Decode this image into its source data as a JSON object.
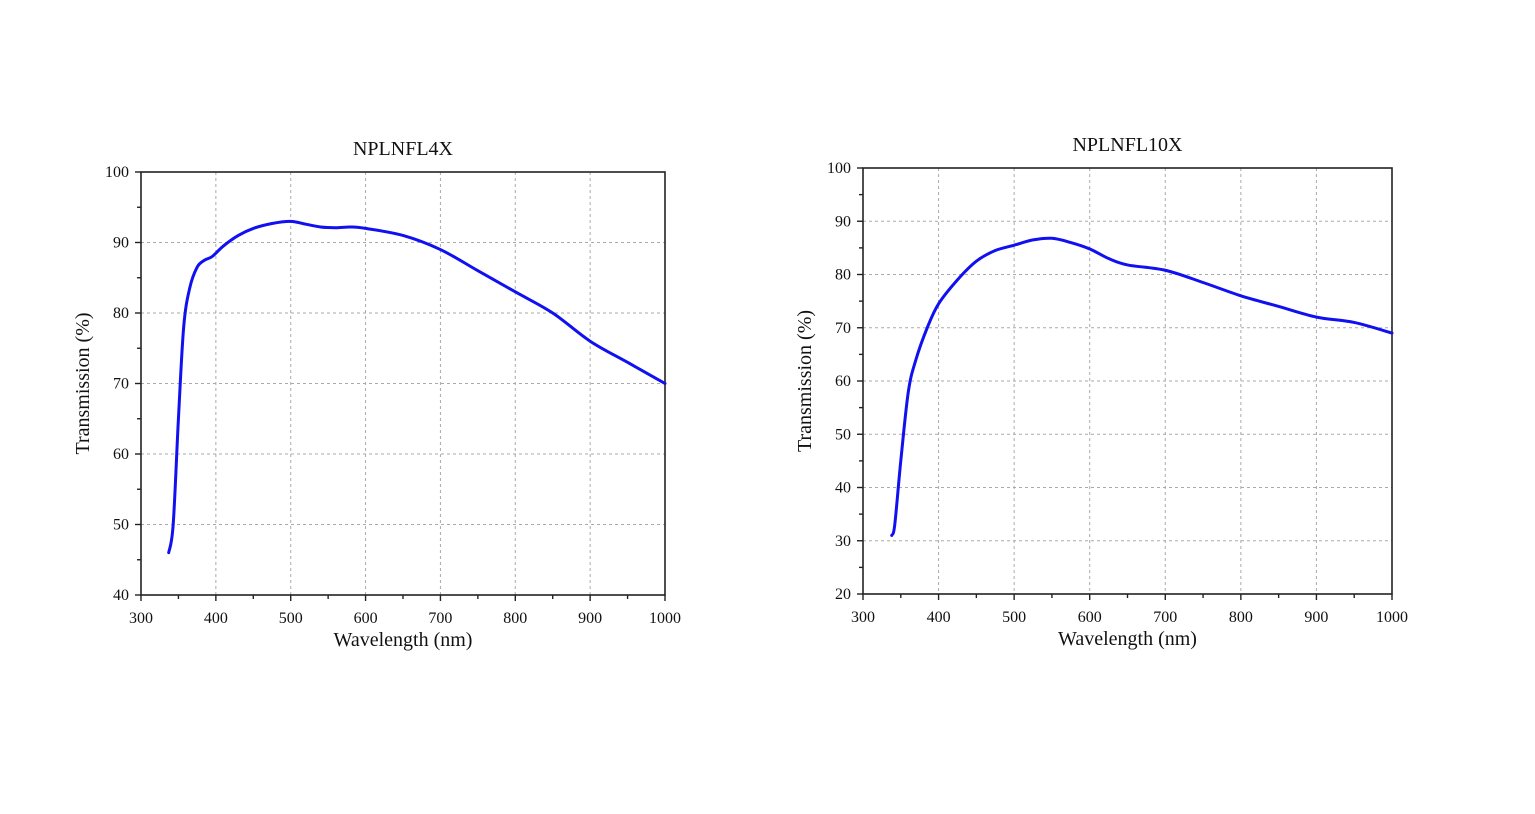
{
  "chart_data": [
    {
      "type": "line",
      "title": "NPLNFL4X",
      "xlabel": "Wavelength (nm)",
      "ylabel": "Transmission (%)",
      "xlim": [
        300,
        1000
      ],
      "ylim": [
        40,
        100
      ],
      "xticks": [
        300,
        400,
        500,
        600,
        700,
        800,
        900,
        1000
      ],
      "yticks": [
        40,
        50,
        60,
        70,
        80,
        90,
        100
      ],
      "grid": true,
      "series_color": "#1010f0",
      "x": [
        337,
        343,
        350,
        357,
        365,
        375,
        385,
        395,
        410,
        430,
        450,
        475,
        500,
        520,
        540,
        560,
        580,
        600,
        650,
        700,
        750,
        800,
        850,
        900,
        950,
        1000
      ],
      "y": [
        46,
        50,
        65,
        78,
        83.5,
        86.5,
        87.5,
        88,
        89.5,
        91,
        92,
        92.7,
        93,
        92.6,
        92.2,
        92.1,
        92.2,
        92,
        91,
        89,
        86,
        83,
        80,
        76,
        73,
        70
      ]
    },
    {
      "type": "line",
      "title": "NPLNFL10X",
      "xlabel": "Wavelength (nm)",
      "ylabel": "Transmission (%)",
      "xlim": [
        300,
        1000
      ],
      "ylim": [
        20,
        100
      ],
      "xticks": [
        300,
        400,
        500,
        600,
        700,
        800,
        900,
        1000
      ],
      "yticks": [
        20,
        30,
        40,
        50,
        60,
        70,
        80,
        90,
        100
      ],
      "grid": true,
      "series_color": "#1010f0",
      "x": [
        338,
        342,
        350,
        360,
        370,
        385,
        400,
        425,
        450,
        475,
        500,
        525,
        550,
        575,
        600,
        625,
        650,
        700,
        750,
        800,
        850,
        900,
        950,
        1000
      ],
      "y": [
        31,
        33,
        45,
        58,
        64,
        70,
        74.5,
        79,
        82.5,
        84.5,
        85.5,
        86.5,
        86.8,
        86,
        84.8,
        83,
        81.8,
        80.8,
        78.5,
        76,
        74,
        72,
        71,
        69
      ]
    }
  ]
}
